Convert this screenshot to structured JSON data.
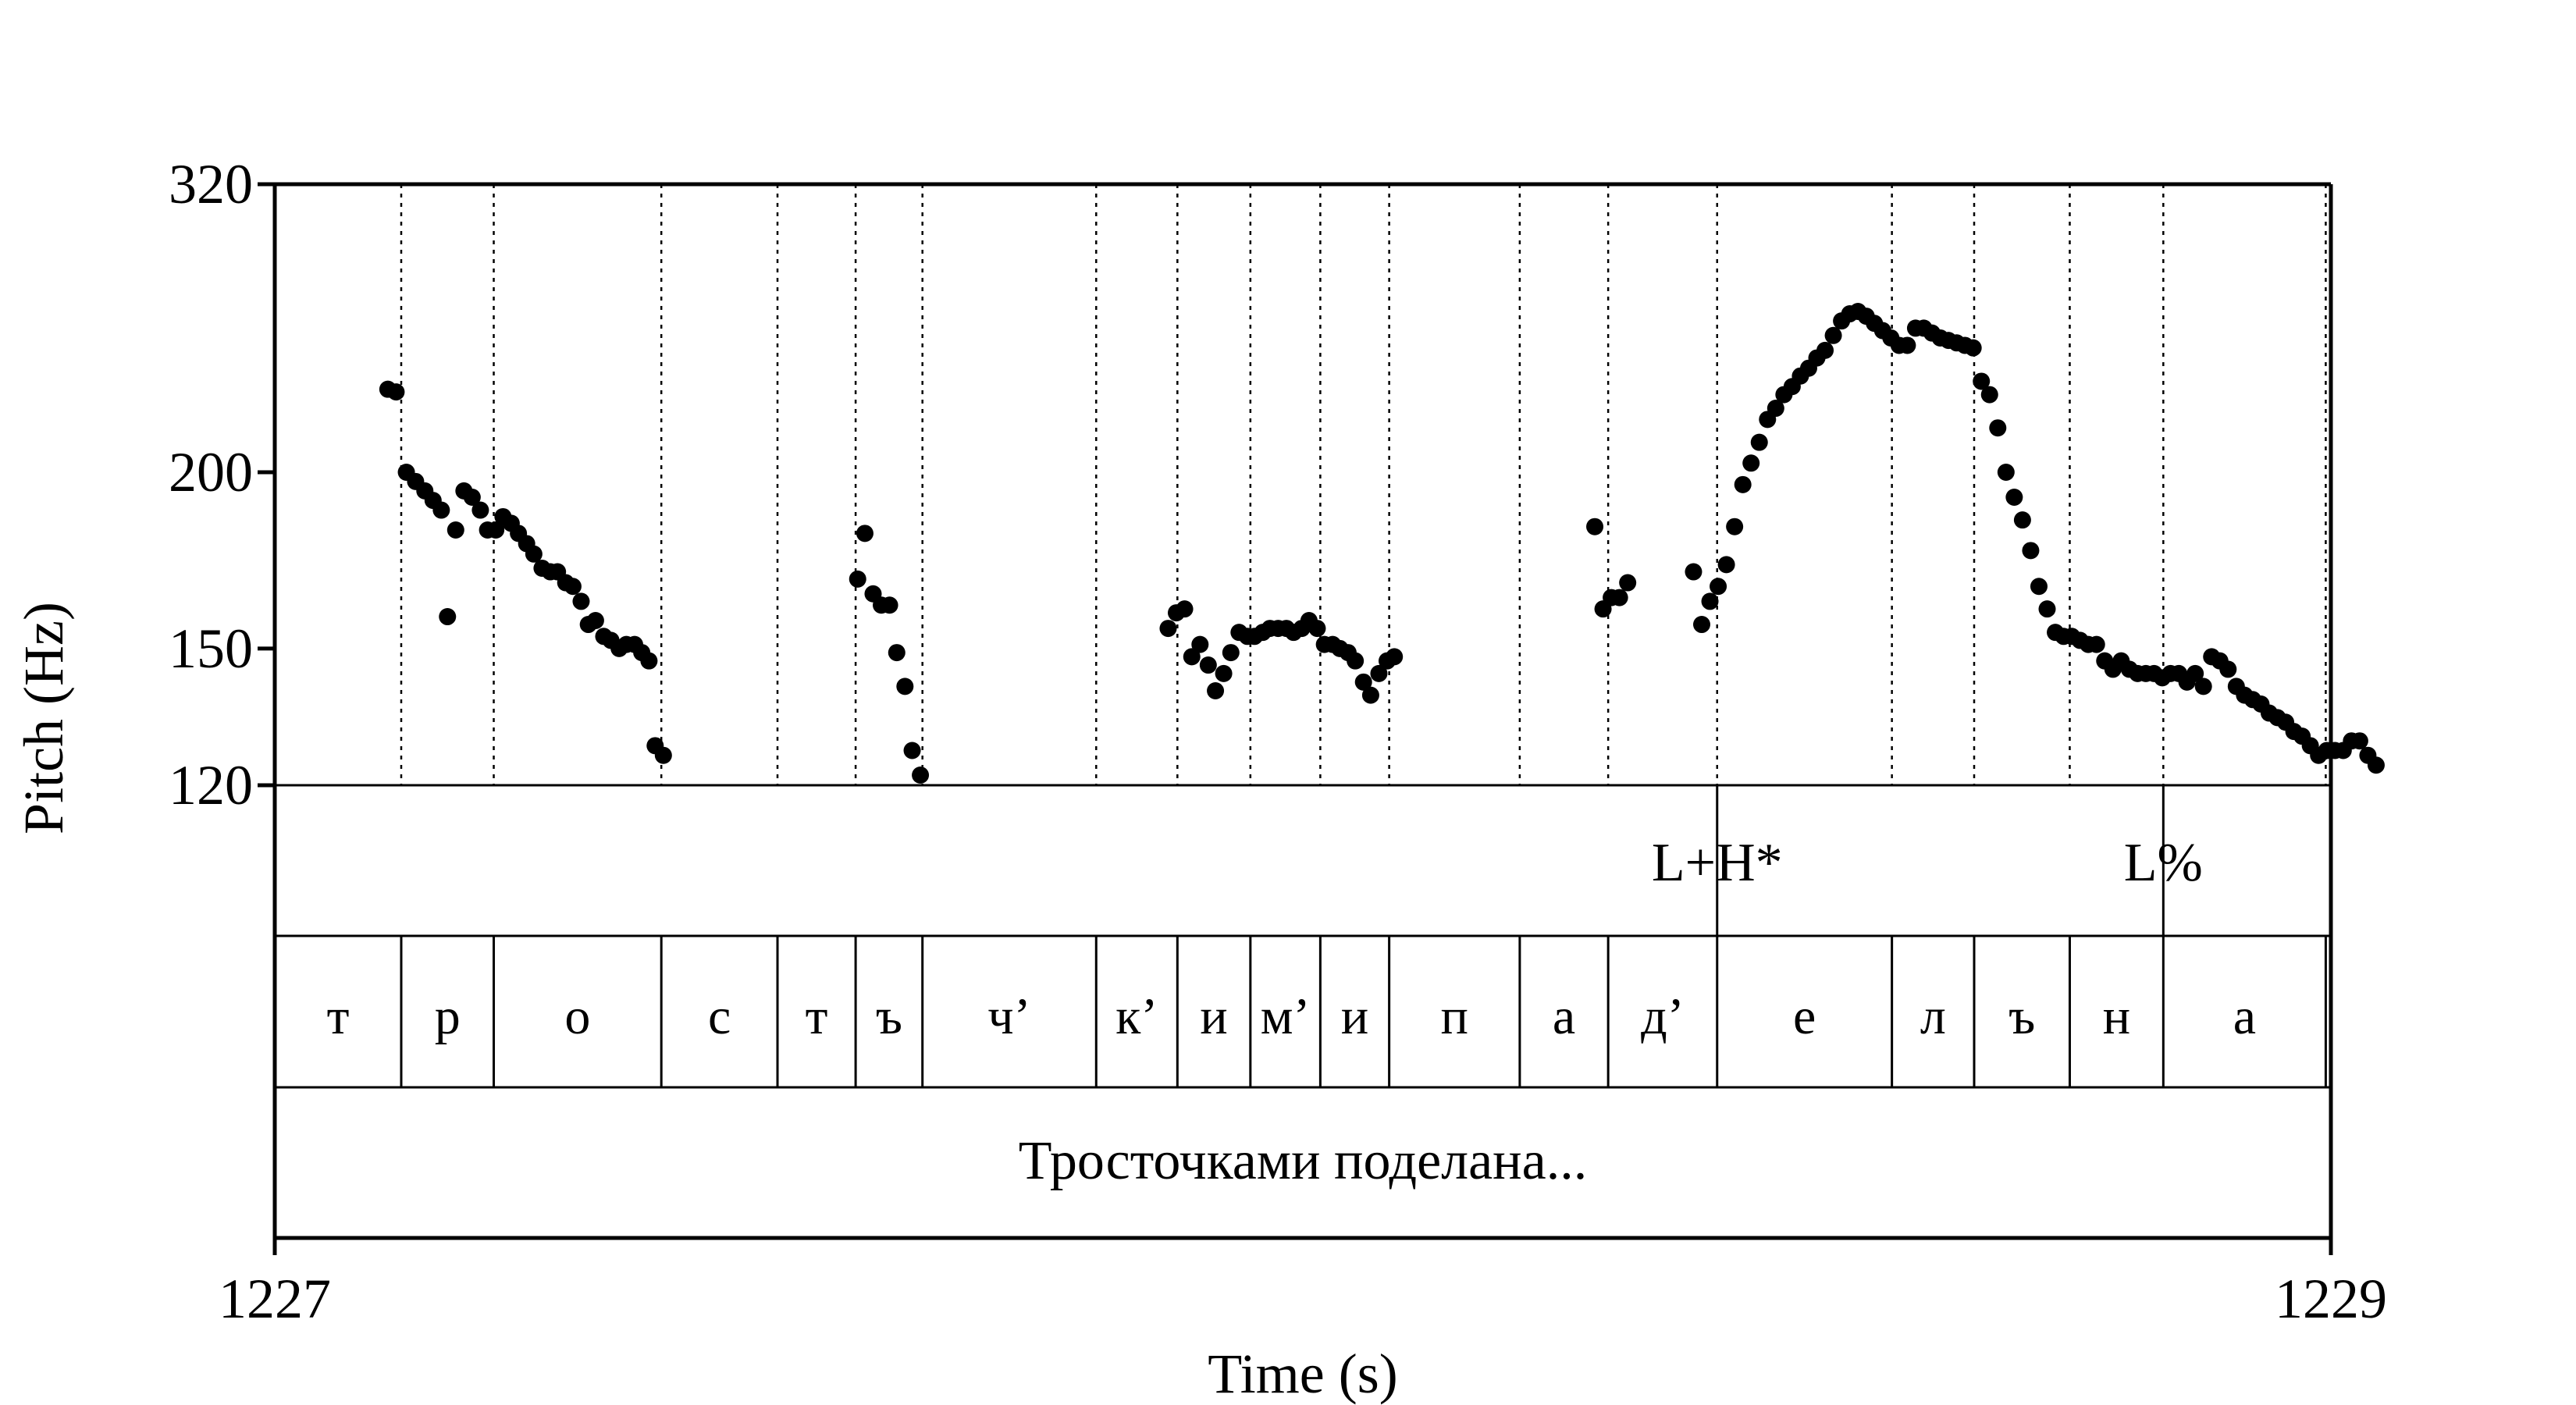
{
  "chart_data": {
    "type": "scatter",
    "xlabel": "Time (s)",
    "ylabel": "Pitch (Hz)",
    "xlim": [
      1227,
      1229
    ],
    "ylim": [
      120,
      320
    ],
    "y_scale": "log",
    "x_ticks": [
      "1227",
      "1229"
    ],
    "y_ticks": [
      {
        "value": 120,
        "label": "120"
      },
      {
        "value": 150,
        "label": "150"
      },
      {
        "value": 200,
        "label": "200"
      },
      {
        "value": 320,
        "label": "320"
      }
    ],
    "x_tick_values": [
      1227,
      1229
    ],
    "boundaries": [
      1227.123,
      1227.213,
      1227.376,
      1227.489,
      1227.565,
      1227.63,
      1227.799,
      1227.878,
      1227.949,
      1228.017,
      1228.084,
      1228.211,
      1228.297,
      1228.403,
      1228.573,
      1228.653,
      1228.746,
      1228.837,
      1228.995
    ],
    "segments": [
      "т",
      "р",
      "о",
      "с",
      "т",
      "ъ",
      "ч’",
      "к’",
      "и",
      "м’",
      "и",
      "п",
      "а",
      "д’",
      "е",
      "л",
      "ъ",
      "н",
      "а"
    ],
    "tone_labels": [
      {
        "label": "L+H*",
        "time": 1228.403
      },
      {
        "label": "L%",
        "time": 1228.837
      }
    ],
    "sentence": "Тросточками поделана...",
    "points": [
      [
        1227.11,
        229
      ],
      [
        1227.118,
        228
      ],
      [
        1227.128,
        200
      ],
      [
        1227.137,
        197
      ],
      [
        1227.146,
        194
      ],
      [
        1227.154,
        191
      ],
      [
        1227.162,
        188
      ],
      [
        1227.168,
        158
      ],
      [
        1227.176,
        182
      ],
      [
        1227.184,
        194
      ],
      [
        1227.192,
        192
      ],
      [
        1227.2,
        188
      ],
      [
        1227.207,
        182
      ],
      [
        1227.215,
        182
      ],
      [
        1227.222,
        186
      ],
      [
        1227.23,
        184
      ],
      [
        1227.237,
        181
      ],
      [
        1227.245,
        178
      ],
      [
        1227.252,
        175
      ],
      [
        1227.26,
        171
      ],
      [
        1227.268,
        170
      ],
      [
        1227.275,
        170
      ],
      [
        1227.283,
        167
      ],
      [
        1227.29,
        166
      ],
      [
        1227.298,
        162
      ],
      [
        1227.305,
        156
      ],
      [
        1227.312,
        157
      ],
      [
        1227.32,
        153
      ],
      [
        1227.327,
        152
      ],
      [
        1227.335,
        150
      ],
      [
        1227.342,
        151
      ],
      [
        1227.35,
        151
      ],
      [
        1227.357,
        149
      ],
      [
        1227.364,
        147
      ],
      [
        1227.37,
        128
      ],
      [
        1227.378,
        126
      ],
      [
        1227.567,
        168
      ],
      [
        1227.574,
        181
      ],
      [
        1227.582,
        164
      ],
      [
        1227.59,
        161
      ],
      [
        1227.598,
        161
      ],
      [
        1227.605,
        149
      ],
      [
        1227.613,
        141
      ],
      [
        1227.62,
        127
      ],
      [
        1227.628,
        122
      ],
      [
        1227.869,
        155
      ],
      [
        1227.877,
        159
      ],
      [
        1227.885,
        160
      ],
      [
        1227.892,
        148
      ],
      [
        1227.9,
        151
      ],
      [
        1227.908,
        146
      ],
      [
        1227.915,
        140
      ],
      [
        1227.923,
        144
      ],
      [
        1227.93,
        149
      ],
      [
        1227.938,
        154
      ],
      [
        1227.946,
        153
      ],
      [
        1227.953,
        153
      ],
      [
        1227.961,
        154
      ],
      [
        1227.968,
        155
      ],
      [
        1227.976,
        155
      ],
      [
        1227.984,
        155
      ],
      [
        1227.991,
        154
      ],
      [
        1227.999,
        155
      ],
      [
        1228.006,
        157
      ],
      [
        1228.014,
        155
      ],
      [
        1228.021,
        151
      ],
      [
        1228.029,
        151
      ],
      [
        1228.036,
        150
      ],
      [
        1228.044,
        149
      ],
      [
        1228.051,
        147
      ],
      [
        1228.059,
        142
      ],
      [
        1228.066,
        139
      ],
      [
        1228.074,
        144
      ],
      [
        1228.082,
        147
      ],
      [
        1228.089,
        148
      ],
      [
        1228.284,
        183
      ],
      [
        1228.292,
        160
      ],
      [
        1228.3,
        163
      ],
      [
        1228.308,
        163
      ],
      [
        1228.316,
        167
      ],
      [
        1228.38,
        170
      ],
      [
        1228.388,
        156
      ],
      [
        1228.396,
        162
      ],
      [
        1228.404,
        166
      ],
      [
        1228.412,
        172
      ],
      [
        1228.42,
        183
      ],
      [
        1228.428,
        196
      ],
      [
        1228.436,
        203
      ],
      [
        1228.444,
        210
      ],
      [
        1228.452,
        218
      ],
      [
        1228.46,
        222
      ],
      [
        1228.468,
        227
      ],
      [
        1228.476,
        230
      ],
      [
        1228.484,
        234
      ],
      [
        1228.492,
        237
      ],
      [
        1228.5,
        241
      ],
      [
        1228.508,
        244
      ],
      [
        1228.516,
        250
      ],
      [
        1228.524,
        256
      ],
      [
        1228.532,
        259
      ],
      [
        1228.54,
        260
      ],
      [
        1228.548,
        258
      ],
      [
        1228.556,
        255
      ],
      [
        1228.564,
        252
      ],
      [
        1228.572,
        249
      ],
      [
        1228.58,
        246
      ],
      [
        1228.588,
        246
      ],
      [
        1228.596,
        253
      ],
      [
        1228.604,
        253
      ],
      [
        1228.612,
        251
      ],
      [
        1228.62,
        249
      ],
      [
        1228.628,
        248
      ],
      [
        1228.636,
        247
      ],
      [
        1228.644,
        246
      ],
      [
        1228.652,
        245
      ],
      [
        1228.66,
        232
      ],
      [
        1228.668,
        227
      ],
      [
        1228.676,
        215
      ],
      [
        1228.684,
        200
      ],
      [
        1228.692,
        192
      ],
      [
        1228.7,
        185
      ],
      [
        1228.708,
        176
      ],
      [
        1228.716,
        166
      ],
      [
        1228.724,
        160
      ],
      [
        1228.732,
        154
      ],
      [
        1228.74,
        153
      ],
      [
        1228.748,
        153
      ],
      [
        1228.756,
        152
      ],
      [
        1228.764,
        151
      ],
      [
        1228.772,
        151
      ],
      [
        1228.78,
        147
      ],
      [
        1228.788,
        145
      ],
      [
        1228.796,
        147
      ],
      [
        1228.804,
        145
      ],
      [
        1228.812,
        144
      ],
      [
        1228.82,
        144
      ],
      [
        1228.828,
        144
      ],
      [
        1228.836,
        143
      ],
      [
        1228.844,
        144
      ],
      [
        1228.852,
        144
      ],
      [
        1228.86,
        142
      ],
      [
        1228.868,
        144
      ],
      [
        1228.876,
        141
      ],
      [
        1228.884,
        148
      ],
      [
        1228.892,
        147
      ],
      [
        1228.9,
        145
      ],
      [
        1228.908,
        141
      ],
      [
        1228.916,
        139
      ],
      [
        1228.924,
        138
      ],
      [
        1228.932,
        137
      ],
      [
        1228.94,
        135
      ],
      [
        1228.948,
        134
      ],
      [
        1228.956,
        133
      ],
      [
        1228.964,
        131
      ],
      [
        1228.972,
        130
      ],
      [
        1228.98,
        128
      ],
      [
        1228.988,
        126
      ],
      [
        1228.996,
        127
      ],
      [
        1229.004,
        127
      ],
      [
        1229.012,
        127
      ],
      [
        1229.02,
        129
      ],
      [
        1229.028,
        129
      ],
      [
        1229.036,
        126
      ],
      [
        1229.044,
        124
      ]
    ]
  }
}
